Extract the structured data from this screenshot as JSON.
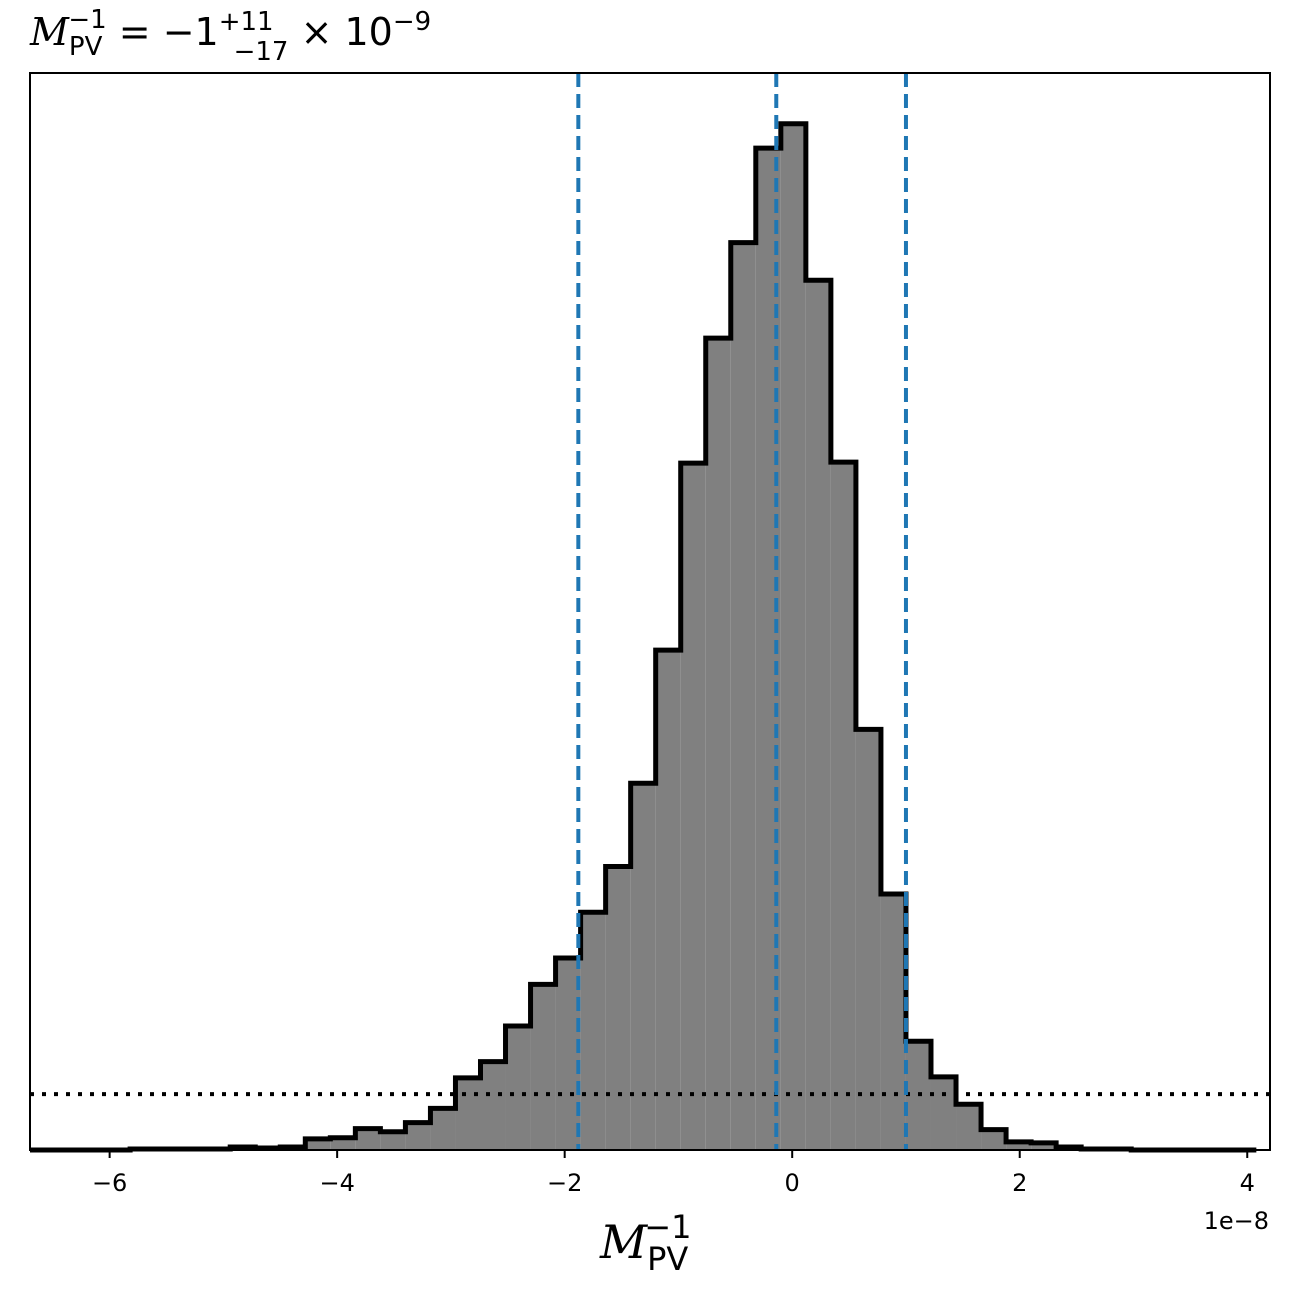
{
  "chart_data": {
    "type": "histogram",
    "title": {
      "main": "M",
      "sub": "PV",
      "sup": "−1",
      "eq": " = −1",
      "err_sup": "+11",
      "err_sub": "−17",
      "times": " × 10",
      "exp": "−9"
    },
    "xlabel": {
      "main": "M",
      "sub": "PV",
      "sup": "−1"
    },
    "x_offset_label": "1e−8",
    "xlim": [
      -6.7,
      4.2
    ],
    "x_ticks": [
      {
        "value": -6,
        "label": "−6"
      },
      {
        "value": -4,
        "label": "−4"
      },
      {
        "value": -2,
        "label": "−2"
      },
      {
        "value": 0,
        "label": "0"
      },
      {
        "value": 2,
        "label": "2"
      },
      {
        "value": 4,
        "label": "4"
      }
    ],
    "ylim": [
      0,
      1.06
    ],
    "y_ticks_shown": false,
    "bin_edges": [
      -6.7,
      -6.48,
      -6.26,
      -6.04,
      -5.82,
      -5.6,
      -5.38,
      -5.16,
      -4.94,
      -4.72,
      -4.5,
      -4.28,
      -4.06,
      -3.84,
      -3.62,
      -3.4,
      -3.18,
      -2.96,
      -2.74,
      -2.52,
      -2.3,
      -2.08,
      -1.86,
      -1.64,
      -1.42,
      -1.2,
      -0.98,
      -0.76,
      -0.54,
      -0.32,
      -0.1,
      0.12,
      0.34,
      0.56,
      0.78,
      1.0,
      1.22,
      1.44,
      1.66,
      1.88,
      2.1,
      2.32,
      2.54,
      2.76,
      2.98,
      3.2,
      3.42,
      3.64,
      3.86,
      4.08
    ],
    "bin_counts": [
      0,
      0,
      0,
      0,
      0.001,
      0.001,
      0.001,
      0.001,
      0.003,
      0.002,
      0.003,
      0.011,
      0.012,
      0.021,
      0.018,
      0.027,
      0.041,
      0.071,
      0.087,
      0.122,
      0.163,
      0.189,
      0.234,
      0.279,
      0.361,
      0.492,
      0.676,
      0.799,
      0.893,
      0.986,
      1.01,
      0.856,
      0.677,
      0.414,
      0.252,
      0.107,
      0.072,
      0.045,
      0.02,
      0.008,
      0.007,
      0.003,
      0.001,
      0.001,
      0,
      0,
      0,
      0,
      0
    ],
    "fill_color": "#808080",
    "edge_color": "#000000",
    "vlines": {
      "values": [
        -1.88,
        -0.14,
        1.0
      ],
      "color": "#1f77b4",
      "style": "dashed"
    },
    "hline": {
      "value": 0.055,
      "color": "#000000",
      "style": "dotted"
    },
    "grid": false
  }
}
